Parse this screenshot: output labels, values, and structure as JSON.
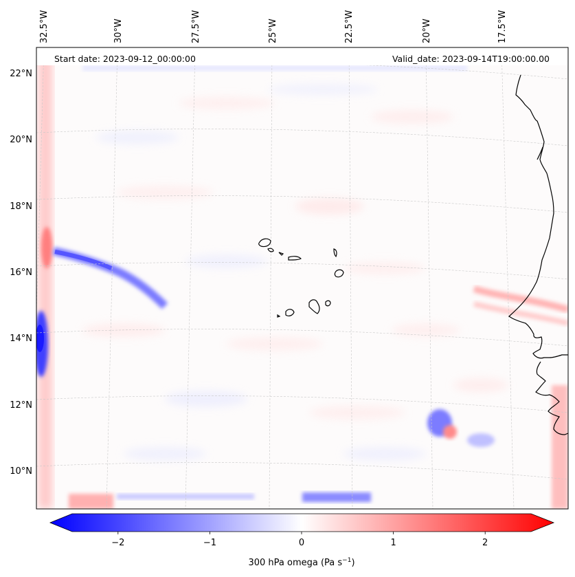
{
  "header": {
    "start_date": "Start date: 2023-09-12_00:00:00",
    "valid_date": "Valid_date: 2023-09-14T19:00:00.00"
  },
  "map": {
    "variable": "300 hPa omega",
    "projection": "lambert-conformal",
    "lon_labels": [
      "32.5°W",
      "30°W",
      "27.5°W",
      "25°W",
      "22.5°W",
      "20°W",
      "17.5°W"
    ],
    "lat_labels": [
      "22°N",
      "20°N",
      "18°N",
      "16°N",
      "14°N",
      "12°N",
      "10°N"
    ],
    "gridlines": true,
    "features": [
      "West African coastline",
      "Cape Verde islands"
    ]
  },
  "colorbar": {
    "label": "300 hPa omega (Pa s",
    "label_sup": "−1",
    "label_close": ")",
    "ticks": [
      "−2",
      "−1",
      "0",
      "1",
      "2"
    ],
    "tick_values": [
      -2,
      -1,
      0,
      1,
      2
    ],
    "range": [
      -2.6,
      2.6
    ],
    "extend": "both",
    "colors": {
      "low": "#0000ff",
      "mid": "#ffffff",
      "high": "#ff0000"
    }
  }
}
